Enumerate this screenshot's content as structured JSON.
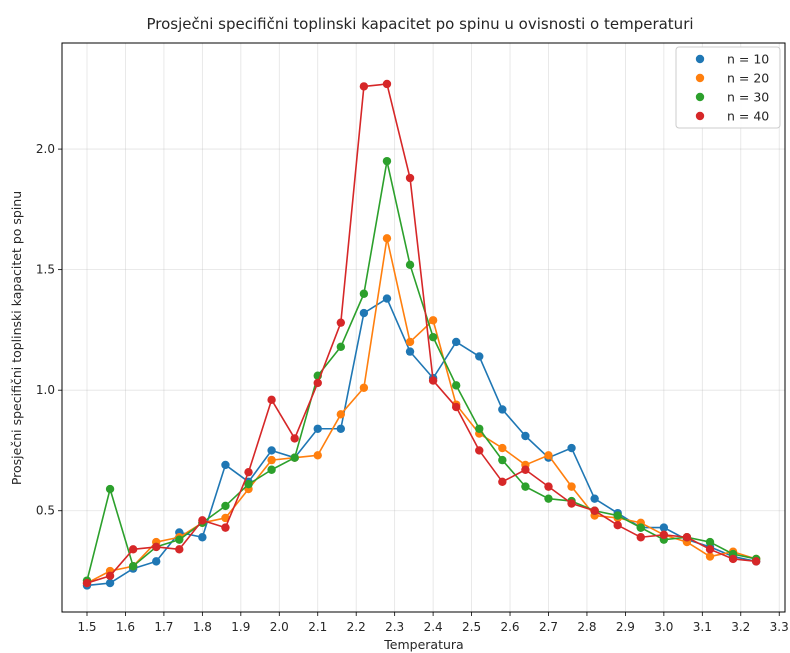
{
  "chart_data": {
    "type": "line",
    "title": "Prosječni specifični toplinski kapacitet po spinu u ovisnosti o temperaturi",
    "xlabel": "Temperatura",
    "ylabel": "Prosječni specifični toplinski kapacitet po spinu",
    "xlim": [
      1.435,
      3.315
    ],
    "ylim": [
      0.08,
      2.44
    ],
    "xticks": [
      "1.5",
      "1.6",
      "1.7",
      "1.8",
      "1.9",
      "2.0",
      "2.1",
      "2.2",
      "2.3",
      "2.4",
      "2.5",
      "2.6",
      "2.7",
      "2.8",
      "2.9",
      "3.0",
      "3.1",
      "3.2",
      "3.3"
    ],
    "yticks": [
      "0.5",
      "1.0",
      "1.5",
      "2.0"
    ],
    "grid": true,
    "legend_position": "top-right",
    "x": [
      1.5,
      1.56,
      1.62,
      1.68,
      1.74,
      1.8,
      1.86,
      1.92,
      1.98,
      2.04,
      2.1,
      2.16,
      2.22,
      2.28,
      2.34,
      2.4,
      2.46,
      2.52,
      2.58,
      2.64,
      2.7,
      2.76,
      2.82,
      2.88,
      2.94,
      3.0,
      3.06,
      3.12,
      3.18,
      3.24
    ],
    "series": [
      {
        "name": "n  = 10",
        "color": "#1f77b4",
        "values": [
          0.19,
          0.2,
          0.26,
          0.29,
          0.41,
          0.39,
          0.69,
          0.62,
          0.75,
          0.72,
          0.84,
          0.84,
          1.32,
          1.38,
          1.16,
          1.05,
          1.2,
          1.14,
          0.92,
          0.81,
          0.72,
          0.76,
          0.55,
          0.49,
          0.43,
          0.43,
          0.38,
          0.35,
          0.31,
          0.29
        ]
      },
      {
        "name": "n = 20",
        "color": "#ff7f0e",
        "values": [
          0.2,
          0.25,
          0.27,
          0.37,
          0.39,
          0.45,
          0.47,
          0.59,
          0.71,
          0.72,
          0.73,
          0.9,
          1.01,
          1.63,
          1.2,
          1.29,
          0.94,
          0.82,
          0.76,
          0.69,
          0.73,
          0.6,
          0.48,
          0.47,
          0.45,
          0.4,
          0.37,
          0.31,
          0.33,
          0.3
        ]
      },
      {
        "name": "n = 30",
        "color": "#2ca02c",
        "values": [
          0.21,
          0.59,
          0.27,
          0.35,
          0.38,
          0.45,
          0.52,
          0.61,
          0.67,
          0.72,
          1.06,
          1.18,
          1.4,
          1.95,
          1.52,
          1.22,
          1.02,
          0.84,
          0.71,
          0.6,
          0.55,
          0.54,
          0.5,
          0.48,
          0.43,
          0.38,
          0.39,
          0.37,
          0.32,
          0.3
        ]
      },
      {
        "name": "n = 40",
        "color": "#d62728",
        "values": [
          0.2,
          0.23,
          0.34,
          0.35,
          0.34,
          0.46,
          0.43,
          0.66,
          0.96,
          0.8,
          1.03,
          1.28,
          2.26,
          2.27,
          1.88,
          1.04,
          0.93,
          0.75,
          0.62,
          0.67,
          0.6,
          0.53,
          0.5,
          0.44,
          0.39,
          0.4,
          0.39,
          0.34,
          0.3,
          0.29
        ]
      }
    ]
  }
}
